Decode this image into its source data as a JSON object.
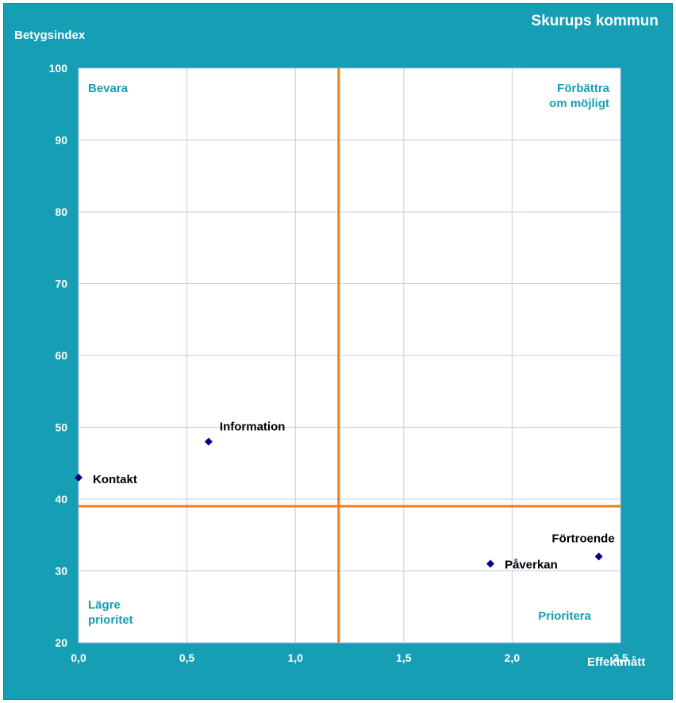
{
  "chart_data": {
    "type": "scatter",
    "title": "Skurups kommun",
    "xlabel": "Effektmått",
    "ylabel": "Betygsindex",
    "xlim": [
      0,
      2.5
    ],
    "ylim": [
      20,
      100
    ],
    "x_ticks": [
      "0,0",
      "0,5",
      "1,0",
      "1,5",
      "2,0",
      "2,5"
    ],
    "y_ticks": [
      "20",
      "30",
      "40",
      "50",
      "60",
      "70",
      "80",
      "90",
      "100"
    ],
    "grid": true,
    "reference_lines": {
      "x": 1.2,
      "y": 39
    },
    "quadrants": {
      "top_left": [
        "Bevara"
      ],
      "top_right": [
        "Förbättra",
        "om möjligt"
      ],
      "bottom_left": [
        "Lägre",
        "prioritet"
      ],
      "bottom_right": [
        "Prioritera"
      ]
    },
    "points": [
      {
        "label": "Information",
        "x": 0.6,
        "y": 48
      },
      {
        "label": "Kontakt",
        "x": 0.0,
        "y": 43
      },
      {
        "label": "Påverkan",
        "x": 1.9,
        "y": 31
      },
      {
        "label": "Förtroende",
        "x": 2.4,
        "y": 32
      }
    ],
    "colors": {
      "background": "#159eb4",
      "plot_area": "#ffffff",
      "grid": "#c8c8ee",
      "reference_line": "#f07b1e",
      "marker": "#000080",
      "quadrant_text": "#159eb4"
    }
  }
}
